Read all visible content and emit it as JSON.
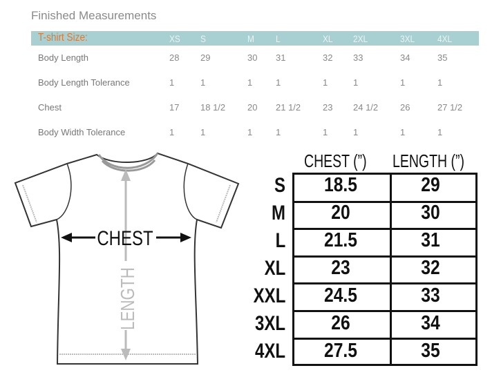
{
  "title": "Finished Measurements",
  "top_table": {
    "header_label": "T-shirt Size:",
    "sizes": [
      "XS",
      "S",
      "M",
      "L",
      "XL",
      "2XL",
      "3XL",
      "4XL"
    ],
    "rows": [
      {
        "label": "Body Length",
        "values": [
          "28",
          "29",
          "30",
          "31",
          "32",
          "33",
          "34",
          "35"
        ]
      },
      {
        "label": "Body Length Tolerance",
        "values": [
          "1",
          "1",
          "1",
          "1",
          "1",
          "1",
          "1",
          "1"
        ]
      },
      {
        "label": "Chest",
        "values": [
          "17",
          "18 1/2",
          "20",
          "21 1/2",
          "23",
          "24 1/2",
          "26",
          "27 1/2"
        ]
      },
      {
        "label": "Body Width Tolerance",
        "values": [
          "1",
          "1",
          "1",
          "1",
          "1",
          "1",
          "1",
          "1"
        ]
      }
    ],
    "header_color": "#a8d0d3",
    "label_color": "#e0782e"
  },
  "diagram": {
    "chest_label": "CHEST",
    "length_label": "LENGTH"
  },
  "size_table": {
    "col_headers": [
      "CHEST (”)",
      "LENGTH (”)"
    ],
    "rows": [
      {
        "size": "S",
        "chest": "18.5",
        "length": "29"
      },
      {
        "size": "M",
        "chest": "20",
        "length": "30"
      },
      {
        "size": "L",
        "chest": "21.5",
        "length": "31"
      },
      {
        "size": "XL",
        "chest": "23",
        "length": "32"
      },
      {
        "size": "XXL",
        "chest": "24.5",
        "length": "33"
      },
      {
        "size": "3XL",
        "chest": "26",
        "length": "34"
      },
      {
        "size": "4XL",
        "chest": "27.5",
        "length": "35"
      }
    ]
  }
}
